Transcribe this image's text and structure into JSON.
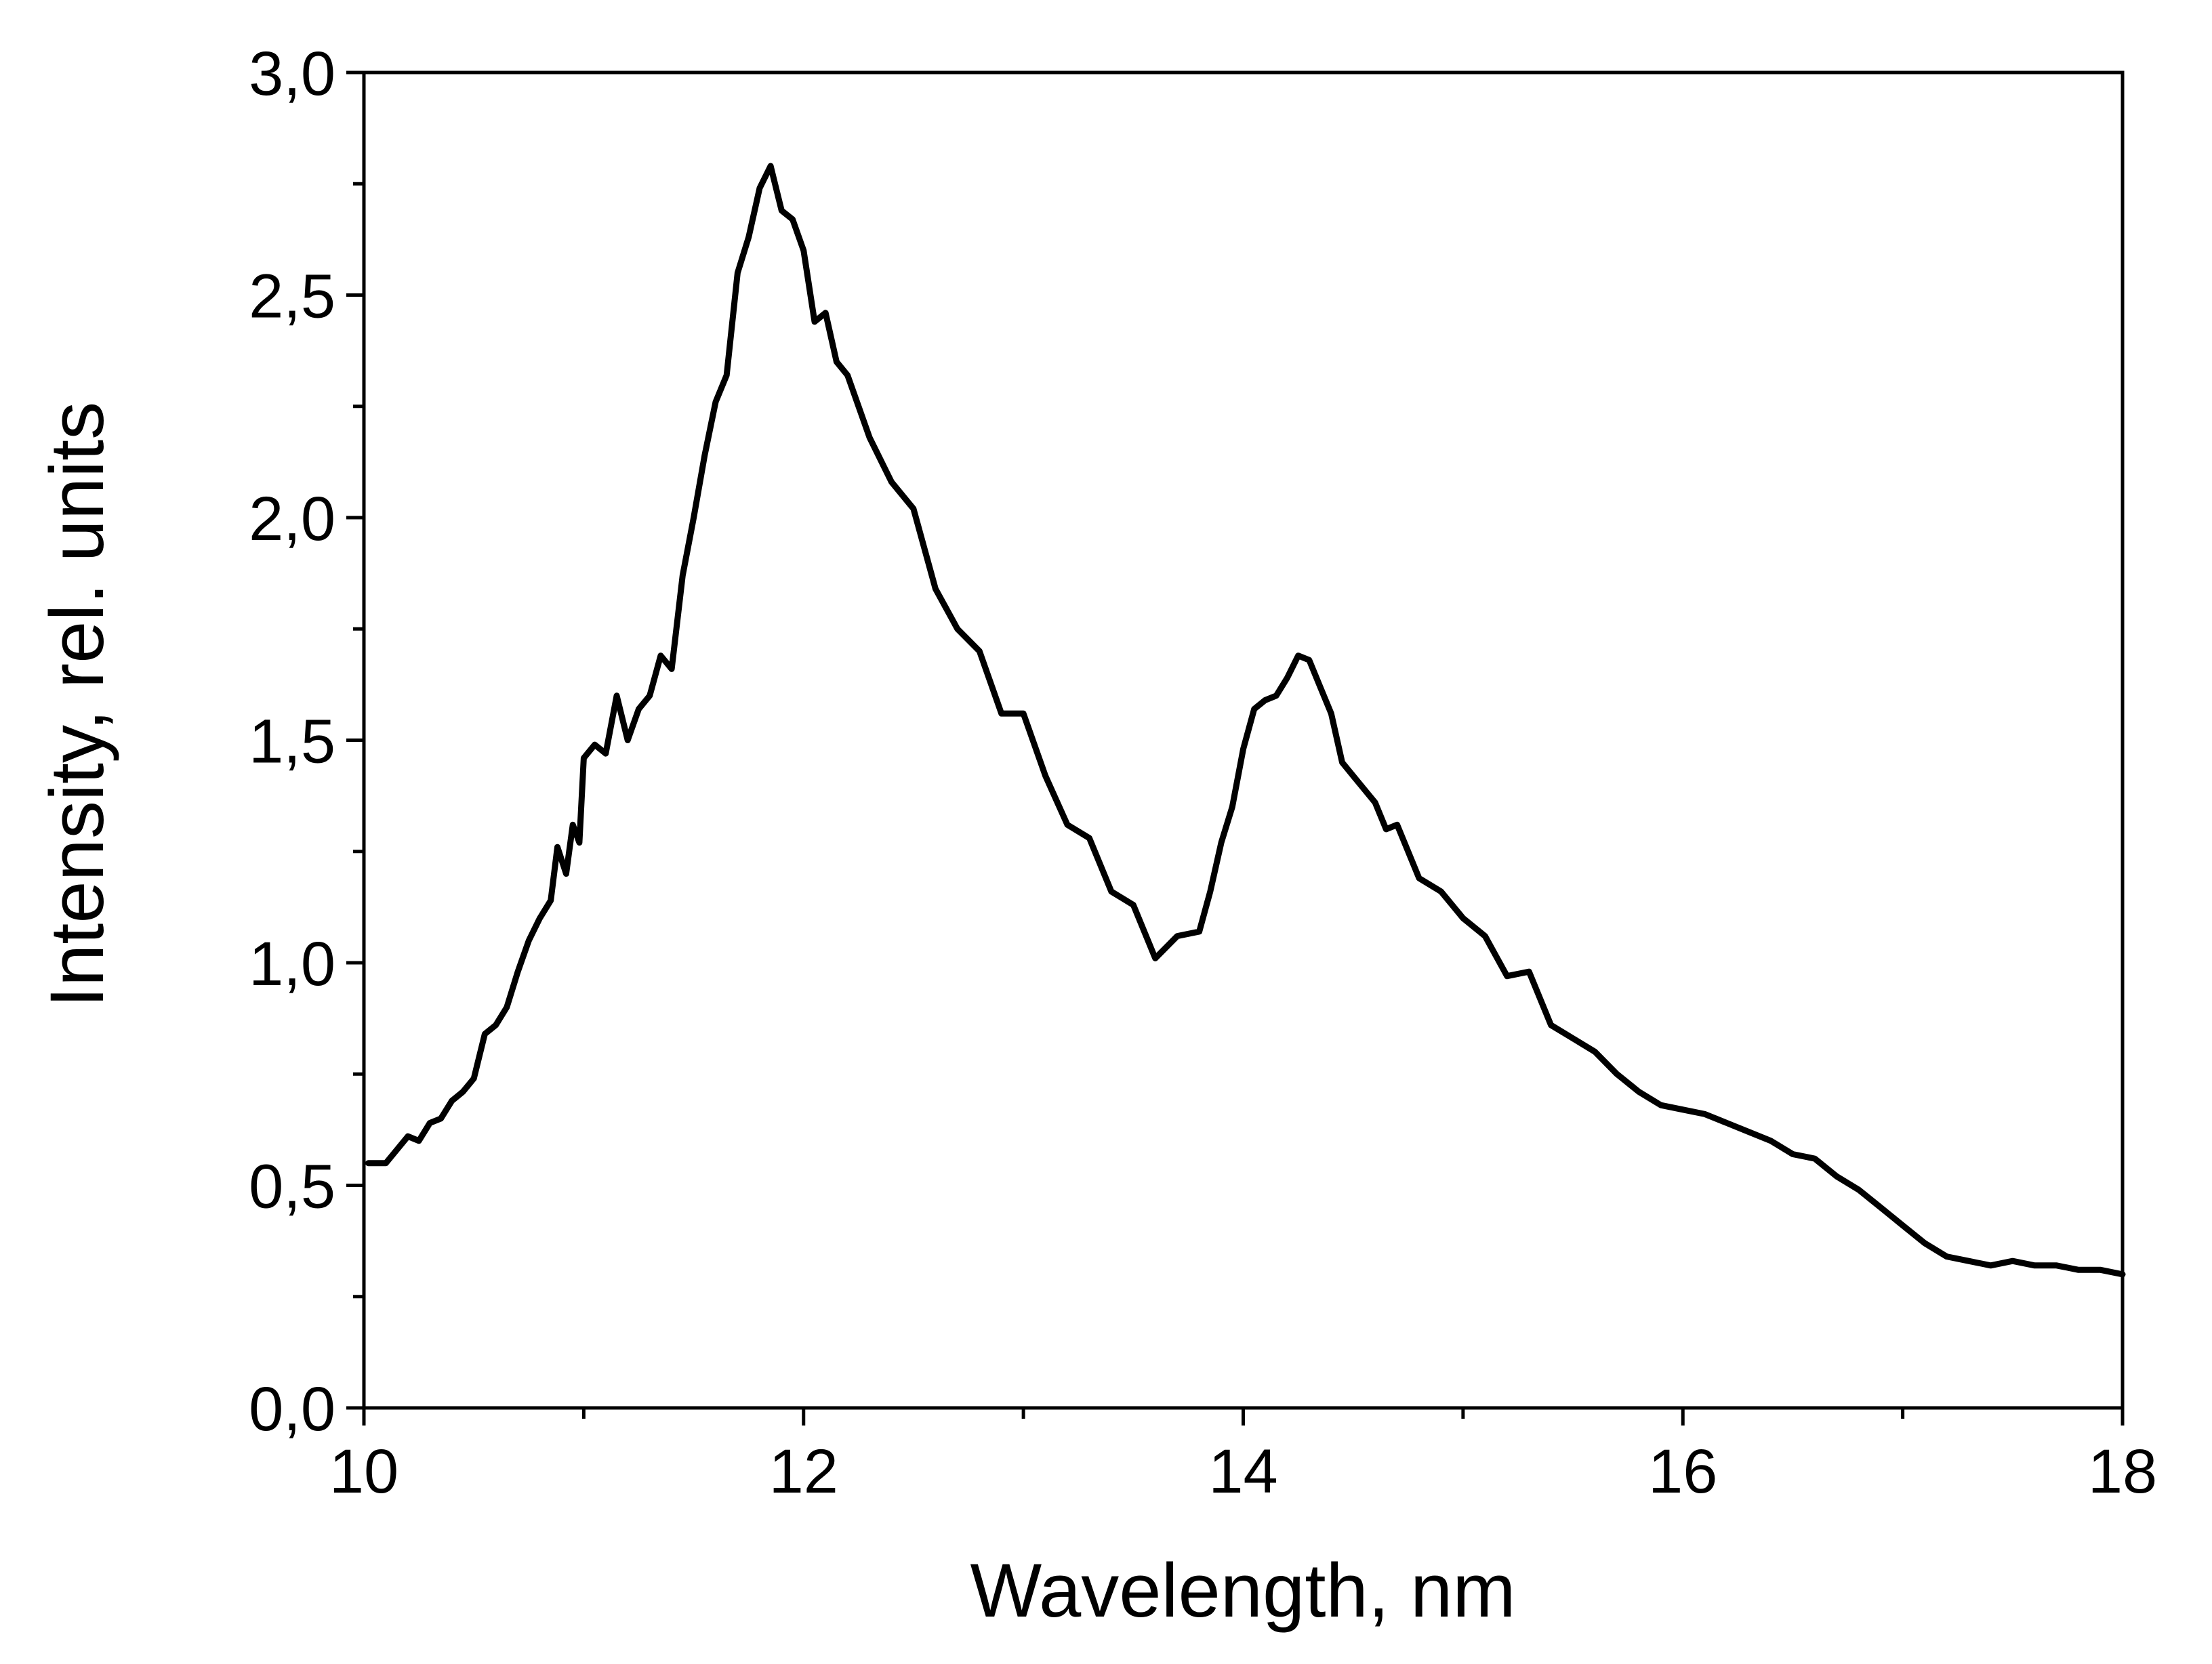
{
  "chart_data": {
    "type": "line",
    "xlabel": "Wavelength, nm",
    "ylabel": "Intensity, rel. units",
    "xlim": [
      10,
      18
    ],
    "ylim": [
      0,
      3
    ],
    "x_ticks": [
      "10",
      "12",
      "14",
      "16",
      "18"
    ],
    "y_ticks": [
      "0,0",
      "0,5",
      "1,0",
      "1,5",
      "2,0",
      "2,5",
      "3,0"
    ],
    "grid": false,
    "legend": "none",
    "line_color": "#000000",
    "series": [
      {
        "x": [
          10.02,
          10.1,
          10.2,
          10.25,
          10.3,
          10.35,
          10.4,
          10.45,
          10.5,
          10.55,
          10.6,
          10.65,
          10.7,
          10.75,
          10.8,
          10.85,
          10.88,
          10.92,
          10.95,
          10.98,
          11.0,
          11.05,
          11.1,
          11.15,
          11.2,
          11.25,
          11.3,
          11.35,
          11.4,
          11.45,
          11.5,
          11.55,
          11.6,
          11.65,
          11.7,
          11.75,
          11.8,
          11.85,
          11.9,
          11.95,
          12.0,
          12.05,
          12.1,
          12.15,
          12.2,
          12.3,
          12.4,
          12.5,
          12.6,
          12.7,
          12.8,
          12.9,
          13.0,
          13.1,
          13.2,
          13.3,
          13.4,
          13.5,
          13.6,
          13.7,
          13.8,
          13.85,
          13.9,
          13.95,
          14.0,
          14.05,
          14.1,
          14.15,
          14.2,
          14.25,
          14.3,
          14.35,
          14.4,
          14.45,
          14.5,
          14.55,
          14.6,
          14.65,
          14.7,
          14.8,
          14.9,
          15.0,
          15.1,
          15.2,
          15.3,
          15.4,
          15.5,
          15.6,
          15.7,
          15.8,
          15.9,
          16.0,
          16.1,
          16.2,
          16.3,
          16.4,
          16.5,
          16.6,
          16.7,
          16.8,
          16.9,
          17.0,
          17.1,
          17.2,
          17.3,
          17.4,
          17.5,
          17.6,
          17.7,
          17.8,
          17.9,
          18.0
        ],
        "y": [
          0.55,
          0.55,
          0.61,
          0.6,
          0.64,
          0.65,
          0.69,
          0.71,
          0.74,
          0.84,
          0.86,
          0.9,
          0.98,
          1.05,
          1.1,
          1.14,
          1.26,
          1.2,
          1.31,
          1.27,
          1.46,
          1.49,
          1.47,
          1.6,
          1.5,
          1.57,
          1.6,
          1.69,
          1.66,
          1.87,
          2.0,
          2.14,
          2.26,
          2.32,
          2.55,
          2.63,
          2.74,
          2.79,
          2.69,
          2.67,
          2.6,
          2.44,
          2.46,
          2.35,
          2.32,
          2.18,
          2.08,
          2.02,
          1.84,
          1.75,
          1.7,
          1.56,
          1.56,
          1.42,
          1.31,
          1.28,
          1.16,
          1.13,
          1.01,
          1.06,
          1.07,
          1.16,
          1.27,
          1.35,
          1.48,
          1.57,
          1.59,
          1.6,
          1.64,
          1.69,
          1.68,
          1.62,
          1.56,
          1.45,
          1.42,
          1.39,
          1.36,
          1.3,
          1.31,
          1.19,
          1.16,
          1.1,
          1.06,
          0.97,
          0.98,
          0.86,
          0.83,
          0.8,
          0.75,
          0.71,
          0.68,
          0.67,
          0.66,
          0.64,
          0.62,
          0.6,
          0.57,
          0.56,
          0.52,
          0.49,
          0.45,
          0.41,
          0.37,
          0.34,
          0.33,
          0.32,
          0.33,
          0.32,
          0.32,
          0.31,
          0.31,
          0.3
        ]
      }
    ]
  }
}
